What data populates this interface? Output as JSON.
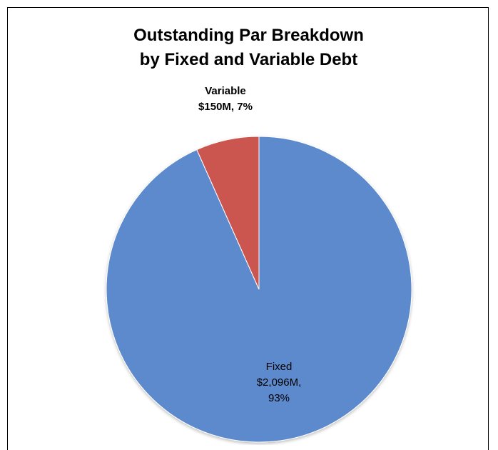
{
  "chart_data": {
    "type": "pie",
    "title_lines": [
      "Outstanding Par Breakdown",
      "by Fixed and Variable Debt"
    ],
    "slices": [
      {
        "name": "Fixed",
        "value": 2096,
        "percent": 93,
        "color": "#5B8ACD",
        "label_lines": [
          "Fixed",
          "$2,096M,",
          "93%"
        ]
      },
      {
        "name": "Variable",
        "value": 150,
        "percent": 7,
        "color": "#CB5450",
        "label_lines": [
          "Variable",
          "$150M, 7%"
        ]
      }
    ],
    "legend": false
  }
}
